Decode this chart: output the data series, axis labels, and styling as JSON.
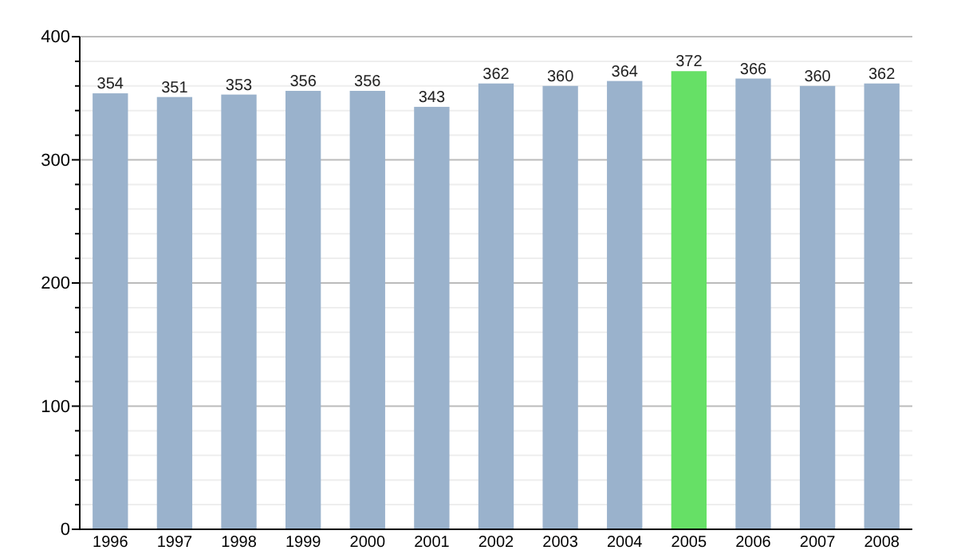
{
  "chart_data": {
    "type": "bar",
    "categories": [
      "1996",
      "1997",
      "1998",
      "1999",
      "2000",
      "2001",
      "2002",
      "2003",
      "2004",
      "2005",
      "2006",
      "2007",
      "2008"
    ],
    "values": [
      354,
      351,
      353,
      356,
      356,
      343,
      362,
      360,
      364,
      372,
      366,
      360,
      362
    ],
    "colors": [
      "#9ab2cc",
      "#9ab2cc",
      "#9ab2cc",
      "#9ab2cc",
      "#9ab2cc",
      "#9ab2cc",
      "#9ab2cc",
      "#9ab2cc",
      "#9ab2cc",
      "#66e066",
      "#9ab2cc",
      "#9ab2cc",
      "#9ab2cc"
    ],
    "ylim": [
      0,
      400
    ],
    "yticks": [
      0,
      {
        "value": 20,
        "label": null
      },
      {
        "value": 40,
        "label": null
      },
      {
        "value": 60,
        "label": null
      },
      {
        "value": 80,
        "label": null
      },
      100,
      {
        "value": 120,
        "label": null
      },
      {
        "value": 140,
        "label": null
      },
      {
        "value": 160,
        "label": null
      },
      {
        "value": 180,
        "label": null
      },
      200,
      {
        "value": 220,
        "label": null
      },
      {
        "value": 240,
        "label": null
      },
      {
        "value": 260,
        "label": null
      },
      {
        "value": 280,
        "label": null
      },
      300,
      {
        "value": 320,
        "label": null
      },
      {
        "value": 340,
        "label": null
      },
      {
        "value": 360,
        "label": null
      },
      {
        "value": 380,
        "label": null
      },
      400
    ],
    "grid": "y",
    "data_labels": true
  }
}
